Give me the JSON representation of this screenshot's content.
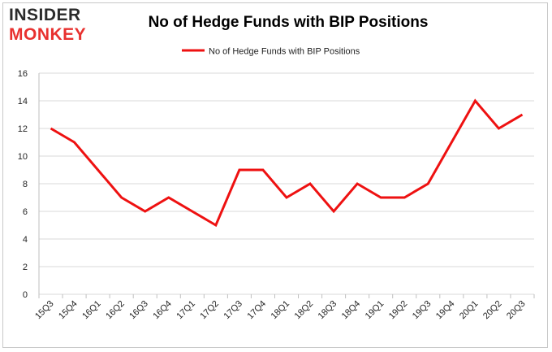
{
  "logo": {
    "line1": "INSIDER",
    "line2": "MONKEY"
  },
  "colors": {
    "series": "#ee1111",
    "grid": "#d9d9d9",
    "logo_red": "#e8312f"
  },
  "chart_data": {
    "type": "line",
    "title": "No of Hedge Funds with BIP Positions",
    "xlabel": "",
    "ylabel": "",
    "ylim": [
      0,
      16
    ],
    "yticks": [
      0,
      2,
      4,
      6,
      8,
      10,
      12,
      14,
      16
    ],
    "grid": true,
    "legend_position": "top-center",
    "categories": [
      "15Q3",
      "15Q4",
      "16Q1",
      "16Q2",
      "16Q3",
      "16Q4",
      "17Q1",
      "17Q2",
      "17Q3",
      "17Q4",
      "18Q1",
      "18Q2",
      "18Q3",
      "18Q4",
      "19Q1",
      "19Q2",
      "19Q3",
      "19Q4",
      "20Q1",
      "20Q2",
      "20Q3"
    ],
    "series": [
      {
        "name": "No of Hedge Funds with BIP Positions",
        "values": [
          12,
          11,
          9,
          7,
          6,
          7,
          6,
          5,
          9,
          9,
          7,
          8,
          6,
          8,
          7,
          7,
          8,
          11,
          14,
          12,
          13
        ]
      }
    ]
  }
}
